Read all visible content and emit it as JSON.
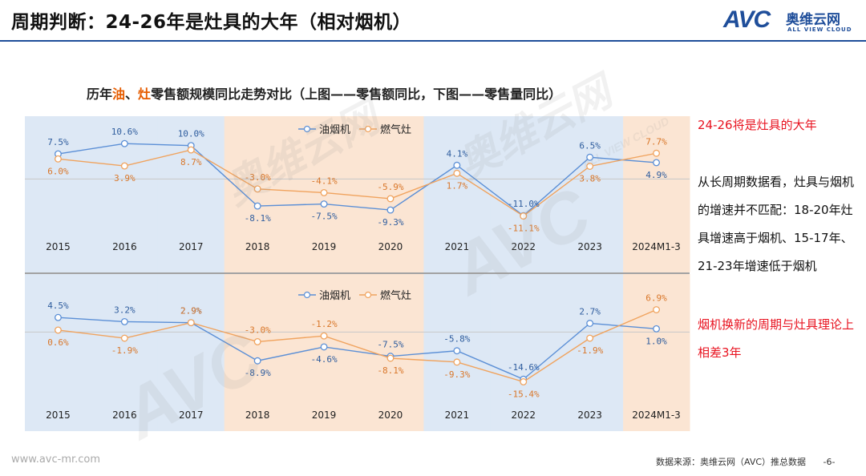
{
  "header": {
    "title": "周期判断：24-26年是灶具的大年（相对烟机）",
    "logo_mark": "AVC",
    "logo_cn": "奥维云网",
    "logo_en": "ALL VIEW CLOUD"
  },
  "subtitle": {
    "pre": "历年",
    "oil": "油",
    "sep": "、",
    "stove": "灶",
    "post": "零售额规模同比走势对比（上图——零售额同比，下图——零售量同比）"
  },
  "colors": {
    "hood": "#5b8fd6",
    "stove": "#f0a35e",
    "band_blue": "#dde8f5",
    "band_orange": "#fbe5d3",
    "red": "#e8121f"
  },
  "chart_data": [
    {
      "type": "line",
      "title": "零售额同比",
      "categories": [
        "2015",
        "2016",
        "2017",
        "2018",
        "2019",
        "2020",
        "2021",
        "2022",
        "2023",
        "2024M1-3"
      ],
      "series": [
        {
          "name": "油烟机",
          "values": [
            7.5,
            10.6,
            10.0,
            -8.1,
            -7.5,
            -9.3,
            4.1,
            -11.0,
            6.5,
            4.9
          ],
          "labels": [
            "7.5%",
            "10.6%",
            "10.0%",
            "-8.1%",
            "-7.5%",
            "-9.3%",
            "4.1%",
            "-11.0%",
            "6.5%",
            "4.9%"
          ]
        },
        {
          "name": "燃气灶",
          "values": [
            6.0,
            3.9,
            8.7,
            -3.0,
            -4.1,
            -5.9,
            1.7,
            -11.1,
            3.8,
            7.7
          ],
          "labels": [
            "6.0%",
            "3.9%",
            "8.7%",
            "-3.0%",
            "-4.1%",
            "-5.9%",
            "1.7%",
            "-11.1%",
            "3.8%",
            "7.7%"
          ]
        }
      ],
      "bands": [
        "blue",
        "blue",
        "blue",
        "orange",
        "orange",
        "orange",
        "blue",
        "blue",
        "blue",
        "orange"
      ],
      "ylim": [
        -16,
        14
      ],
      "legend": "top-center"
    },
    {
      "type": "line",
      "title": "零售量同比",
      "categories": [
        "2015",
        "2016",
        "2017",
        "2018",
        "2019",
        "2020",
        "2021",
        "2022",
        "2023",
        "2024M1-3"
      ],
      "series": [
        {
          "name": "油烟机",
          "values": [
            4.5,
            3.2,
            2.9,
            -8.9,
            -4.6,
            -7.5,
            -5.8,
            -14.6,
            2.7,
            1.0
          ],
          "labels": [
            "4.5%",
            "3.2%",
            "2.9%",
            "-8.9%",
            "-4.6%",
            "-7.5%",
            "-5.8%",
            "-14.6%",
            "2.7%",
            "1.0%"
          ]
        },
        {
          "name": "燃气灶",
          "values": [
            0.6,
            -1.9,
            2.9,
            -3.0,
            -1.2,
            -8.1,
            -9.3,
            -15.4,
            -1.9,
            6.9
          ],
          "labels": [
            "0.6%",
            "-1.9%",
            "2.9%",
            "-3.0%",
            "-1.2%",
            "-8.1%",
            "-9.3%",
            "-15.4%",
            "-1.9%",
            "6.9%"
          ]
        }
      ],
      "bands": [
        "blue",
        "blue",
        "blue",
        "orange",
        "orange",
        "orange",
        "blue",
        "blue",
        "blue",
        "orange"
      ],
      "ylim": [
        -20,
        11
      ],
      "legend": "top-center"
    }
  ],
  "side": {
    "headline": "24-26将是灶具的大年",
    "body": "从长周期数据看，灶具与烟机的增速并不匹配：18-20年灶具增速高于烟机、15-17年、21-23年增速低于烟机",
    "conclusion": "烟机换新的周期与灶具理论上相差3年"
  },
  "footer": {
    "website": "www.avc-mr.com",
    "source": "数据来源：奥维云网（AVC）推总数据",
    "page": "-6-"
  },
  "watermark": {
    "cn": "奥维云网",
    "en": "ALL VIEW CLOUD",
    "mark": "AVC"
  }
}
